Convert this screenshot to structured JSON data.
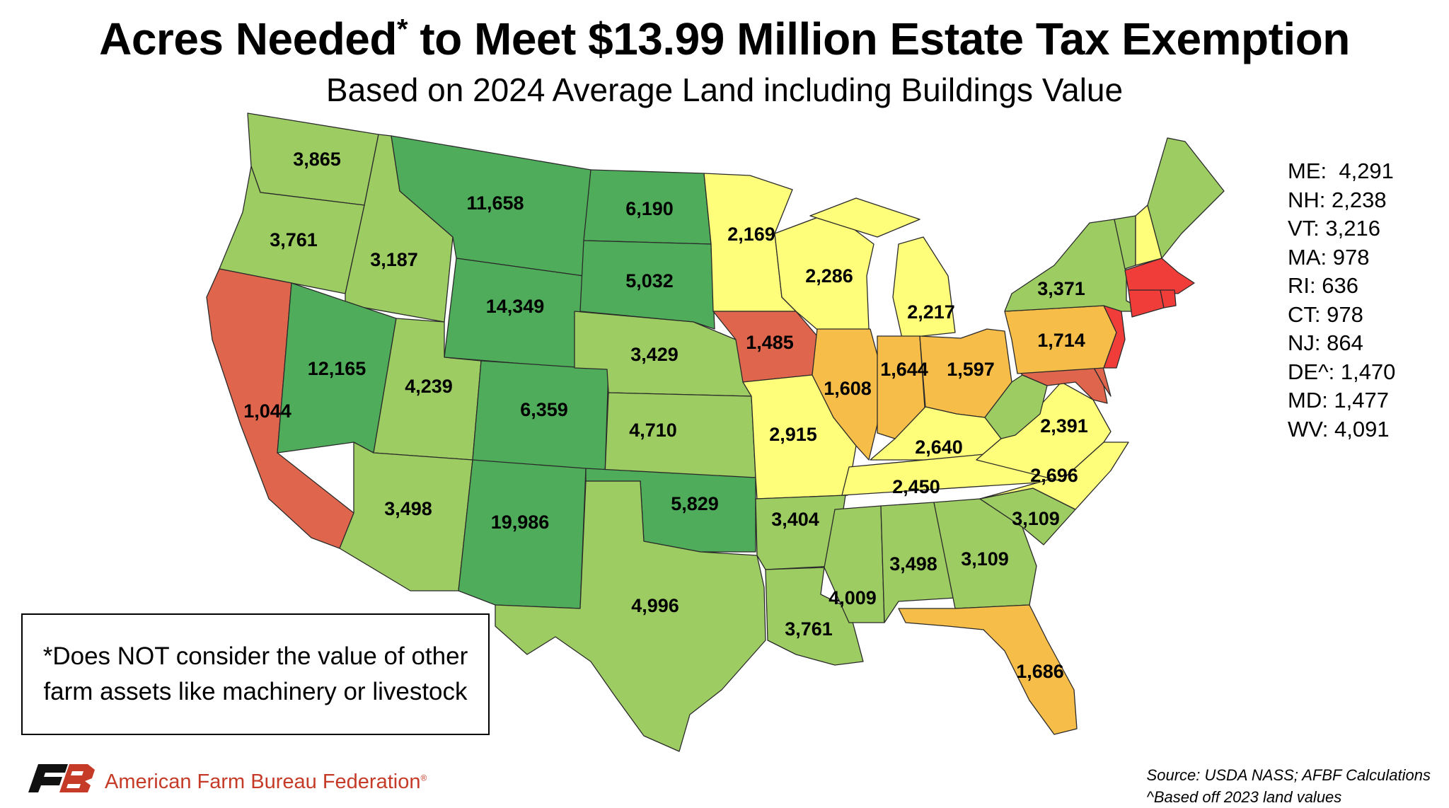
{
  "title": "Acres Needed",
  "title_mark": "*",
  "title_rest": " to Meet $13.99 Million Estate Tax Exemption",
  "subtitle": "Based on 2024 Average Land including Buildings Value",
  "legend_colors": {
    "dark_green": "#4fac5b",
    "light_green": "#9dcc62",
    "yellow": "#fefe7a",
    "orange": "#f6bd48",
    "salmon": "#e0654d",
    "red": "#f03d3a"
  },
  "states": [
    {
      "code": "WA",
      "acres": "3,865"
    },
    {
      "code": "OR",
      "acres": "3,761"
    },
    {
      "code": "CA",
      "acres": "1,044"
    },
    {
      "code": "ID",
      "acres": "3,187"
    },
    {
      "code": "NV",
      "acres": "12,165"
    },
    {
      "code": "MT",
      "acres": "11,658"
    },
    {
      "code": "WY",
      "acres": "14,349"
    },
    {
      "code": "UT",
      "acres": "4,239"
    },
    {
      "code": "AZ",
      "acres": "3,498"
    },
    {
      "code": "CO",
      "acres": "6,359"
    },
    {
      "code": "NM",
      "acres": "19,986"
    },
    {
      "code": "ND",
      "acres": "6,190"
    },
    {
      "code": "SD",
      "acres": "5,032"
    },
    {
      "code": "NE",
      "acres": "3,429"
    },
    {
      "code": "KS",
      "acres": "4,710"
    },
    {
      "code": "OK",
      "acres": "5,829"
    },
    {
      "code": "TX",
      "acres": "4,996"
    },
    {
      "code": "MN",
      "acres": "2,169"
    },
    {
      "code": "IA",
      "acres": "1,485"
    },
    {
      "code": "MO",
      "acres": "2,915"
    },
    {
      "code": "AR",
      "acres": "3,404"
    },
    {
      "code": "LA",
      "acres": "3,761"
    },
    {
      "code": "WI",
      "acres": "2,286"
    },
    {
      "code": "IL",
      "acres": "1,608"
    },
    {
      "code": "MI",
      "acres": "2,217"
    },
    {
      "code": "IN",
      "acres": "1,644"
    },
    {
      "code": "OH",
      "acres": "1,597"
    },
    {
      "code": "KY",
      "acres": "2,640"
    },
    {
      "code": "TN",
      "acres": "2,450"
    },
    {
      "code": "MS",
      "acres": "4,009"
    },
    {
      "code": "AL",
      "acres": "3,498"
    },
    {
      "code": "GA",
      "acres": "3,109"
    },
    {
      "code": "FL",
      "acres": "1,686"
    },
    {
      "code": "SC",
      "acres": "3,109"
    },
    {
      "code": "NC",
      "acres": "2,696"
    },
    {
      "code": "VA",
      "acres": "2,391"
    },
    {
      "code": "PA",
      "acres": "1,714"
    },
    {
      "code": "NY",
      "acres": "3,371"
    }
  ],
  "small_states": "ME:  4,291\nNH: 2,238\nVT: 3,216\nMA: 978\nRI: 636\nCT: 978\nNJ: 864\nDE^: 1,470\nMD: 1,477\nWV: 4,091",
  "note": "*Does NOT consider the value of other farm assets like machinery or livestock",
  "organization": "American Farm Bureau Federation",
  "organization_mark": "®",
  "logo_text": "FB",
  "source": "Source: USDA NASS; AFBF Calculations\n^Based off 2023 land values"
}
